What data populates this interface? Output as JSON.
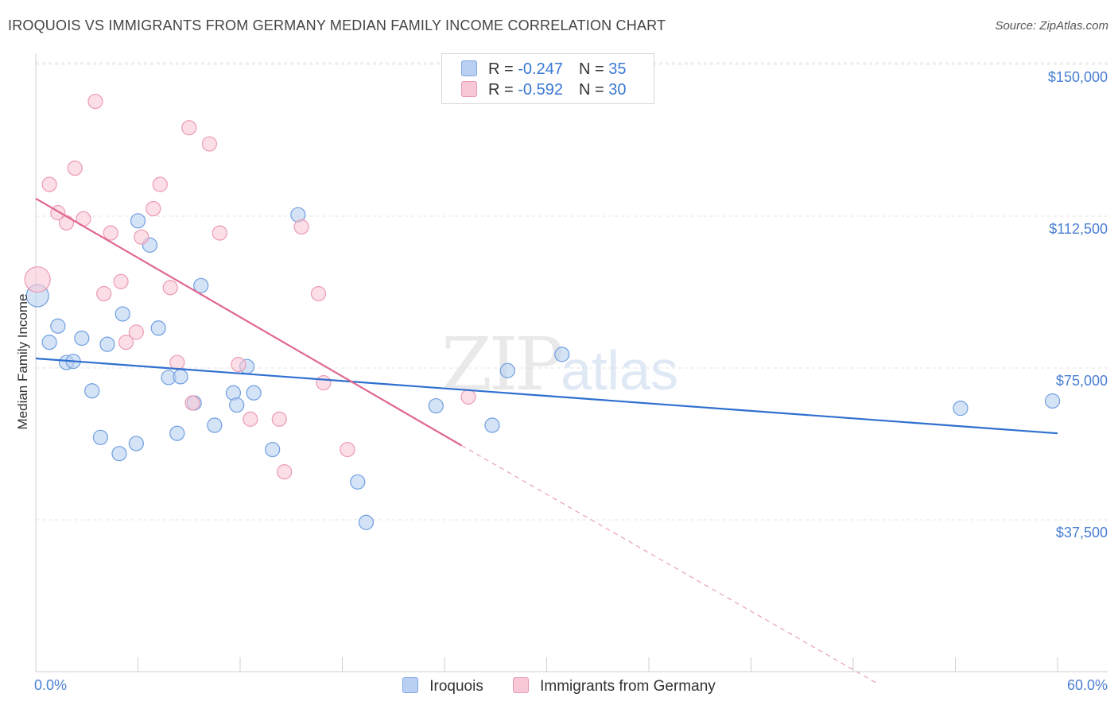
{
  "title": "IROQUOIS VS IMMIGRANTS FROM GERMANY MEDIAN FAMILY INCOME CORRELATION CHART",
  "source": "Source: ZipAtlas.com",
  "watermark": {
    "zip": "ZIP",
    "atlas": "atlas"
  },
  "legend": [
    {
      "name": "Iroquois",
      "r_label": "R = ",
      "r": "-0.247",
      "n_label": "N = ",
      "n": "35",
      "color": "#6f9fe0"
    },
    {
      "name": "Immigrants from Germany",
      "r_label": "R = ",
      "r": "-0.592",
      "n_label": "N = ",
      "n": "30",
      "color": "#ec9ab5"
    }
  ],
  "chart_data": {
    "type": "scatter",
    "title": "IROQUOIS VS IMMIGRANTS FROM GERMANY MEDIAN FAMILY INCOME CORRELATION CHART",
    "xlabel": "",
    "ylabel": "Median Family Income",
    "xlim": [
      0,
      60
    ],
    "ylim": [
      0,
      155000
    ],
    "x_tick_labels": [
      "0.0%",
      "60.0%"
    ],
    "y_ticks": [
      37500,
      75000,
      112500,
      150000
    ],
    "y_tick_labels": [
      "$37,500",
      "$75,000",
      "$112,500",
      "$150,000"
    ],
    "series": [
      {
        "name": "Iroquois",
        "color": "#6f9fe0",
        "fill": "#b9d0f2",
        "points": [
          [
            0.1,
            96000,
            14
          ],
          [
            0.8,
            84500,
            9
          ],
          [
            1.3,
            88500,
            9
          ],
          [
            1.8,
            79500,
            9
          ],
          [
            2.2,
            79800,
            9
          ],
          [
            2.7,
            85500,
            9
          ],
          [
            3.3,
            72500,
            9
          ],
          [
            3.8,
            61000,
            9
          ],
          [
            4.2,
            84000,
            9
          ],
          [
            4.9,
            57000,
            9
          ],
          [
            5.1,
            91500,
            9
          ],
          [
            5.9,
            59500,
            9
          ],
          [
            6.0,
            114500,
            9
          ],
          [
            6.7,
            108500,
            9
          ],
          [
            7.2,
            88000,
            9
          ],
          [
            7.8,
            75800,
            9
          ],
          [
            8.3,
            62000,
            9
          ],
          [
            8.5,
            76000,
            9
          ],
          [
            9.3,
            69500,
            9
          ],
          [
            9.7,
            98500,
            9
          ],
          [
            10.5,
            64000,
            9
          ],
          [
            11.6,
            72000,
            9
          ],
          [
            11.8,
            69000,
            9
          ],
          [
            12.4,
            78500,
            9
          ],
          [
            12.8,
            72000,
            9
          ],
          [
            13.9,
            58000,
            9
          ],
          [
            15.4,
            116000,
            9
          ],
          [
            18.9,
            50000,
            9
          ],
          [
            19.4,
            40000,
            9
          ],
          [
            23.5,
            68800,
            9
          ],
          [
            26.8,
            64000,
            9
          ],
          [
            27.7,
            77500,
            9
          ],
          [
            30.9,
            81500,
            9
          ],
          [
            54.3,
            68200,
            9
          ],
          [
            59.7,
            70000,
            9
          ]
        ],
        "trend": {
          "x0": 0,
          "y0": 80500,
          "x1": 60,
          "y1": 62000
        }
      },
      {
        "name": "Immigrants from Germany",
        "color": "#ec9ab5",
        "fill": "#f8c8d6",
        "points": [
          [
            0.1,
            100000,
            16
          ],
          [
            0.8,
            123500,
            9
          ],
          [
            1.3,
            116500,
            9
          ],
          [
            1.8,
            114000,
            9
          ],
          [
            2.3,
            127500,
            9
          ],
          [
            2.8,
            115000,
            9
          ],
          [
            3.5,
            144000,
            9
          ],
          [
            4.0,
            96500,
            9
          ],
          [
            4.4,
            111500,
            9
          ],
          [
            5.0,
            99500,
            9
          ],
          [
            5.3,
            84500,
            9
          ],
          [
            5.9,
            87000,
            9
          ],
          [
            6.2,
            110500,
            9
          ],
          [
            6.9,
            117500,
            9
          ],
          [
            7.3,
            123500,
            9
          ],
          [
            7.9,
            98000,
            9
          ],
          [
            8.3,
            79500,
            9
          ],
          [
            9.0,
            137500,
            9
          ],
          [
            9.2,
            69500,
            9
          ],
          [
            10.2,
            133500,
            9
          ],
          [
            10.8,
            111500,
            9
          ],
          [
            11.9,
            79000,
            9
          ],
          [
            12.6,
            65500,
            9
          ],
          [
            14.3,
            65500,
            9
          ],
          [
            14.6,
            52500,
            9
          ],
          [
            15.6,
            113000,
            9
          ],
          [
            16.6,
            96500,
            9
          ],
          [
            16.9,
            74500,
            9
          ],
          [
            18.3,
            58000,
            9
          ],
          [
            25.4,
            71000,
            9
          ]
        ],
        "trend": {
          "x0": 0,
          "y0": 120000,
          "x1": 25,
          "y1": 59000
        },
        "trend_dashed": {
          "x0": 25,
          "y0": 59000,
          "x1": 49.5,
          "y1": 0
        }
      }
    ]
  }
}
